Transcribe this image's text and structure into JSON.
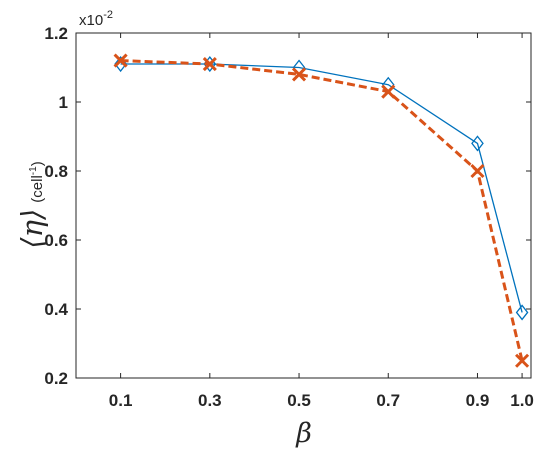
{
  "chart_data": {
    "type": "line",
    "x": [
      0.1,
      0.3,
      0.5,
      0.7,
      0.9,
      1.0
    ],
    "x_tick_labels": [
      "0.1",
      "0.3",
      "0.5",
      "0.7",
      "0.9",
      "1.0"
    ],
    "y_tick_labels": [
      "0.2",
      "0.4",
      "0.6",
      "0.8",
      "1",
      "1.2"
    ],
    "y_ticks": [
      0.2,
      0.4,
      0.6,
      0.8,
      1.0,
      1.2
    ],
    "y_exponent": {
      "base": "x10",
      "power": "-2"
    },
    "xlabel": "β",
    "ylabel": {
      "main": "⟨η⟩",
      "unit": "(cell",
      "unit_power": "-1",
      "unit_close": ")"
    },
    "xlim": [
      0.0,
      1.02
    ],
    "ylim": [
      0.2,
      1.2
    ],
    "grid": false,
    "series": [
      {
        "values": [
          1.11,
          1.11,
          1.1,
          1.05,
          0.88,
          0.39
        ],
        "color": "#0072BD",
        "line_style": "solid",
        "marker": "diamond"
      },
      {
        "values": [
          1.12,
          1.11,
          1.08,
          1.03,
          0.8,
          0.25
        ],
        "color": "#D95319",
        "line_style": "dashed",
        "marker": "x"
      }
    ]
  }
}
